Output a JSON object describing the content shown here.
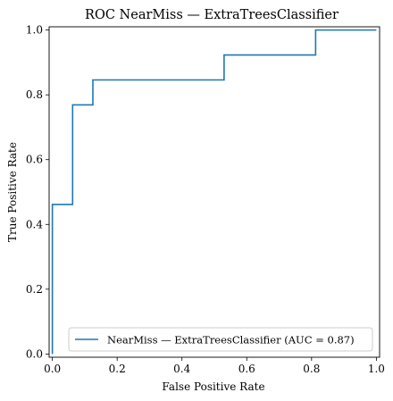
{
  "chart_data": {
    "type": "line",
    "title": "ROC NearMiss — ExtraTreesClassifier",
    "xlabel": "False Positive Rate",
    "ylabel": "True Positive Rate",
    "xlim": [
      -0.01,
      1.01
    ],
    "ylim": [
      -0.01,
      1.01
    ],
    "xticks": [
      0.0,
      0.2,
      0.4,
      0.6,
      0.8,
      1.0
    ],
    "yticks": [
      0.0,
      0.2,
      0.4,
      0.6,
      0.8,
      1.0
    ],
    "xtick_labels": [
      "0.0",
      "0.2",
      "0.4",
      "0.6",
      "0.8",
      "1.0"
    ],
    "ytick_labels": [
      "0.0",
      "0.2",
      "0.4",
      "0.6",
      "0.8",
      "1.0"
    ],
    "grid": false,
    "legend_position": "lower-right",
    "series": [
      {
        "name": "NearMiss — ExtraTreesClassifier (AUC = 0.87)",
        "color": "#1f77b4",
        "x": [
          0.0,
          0.0,
          0.0,
          0.0625,
          0.0625,
          0.125,
          0.125,
          0.53,
          0.53,
          0.8125,
          0.8125,
          1.0
        ],
        "y": [
          0.0,
          0.077,
          0.4615,
          0.4615,
          0.769,
          0.769,
          0.846,
          0.846,
          0.923,
          0.923,
          1.0,
          1.0
        ]
      }
    ]
  }
}
